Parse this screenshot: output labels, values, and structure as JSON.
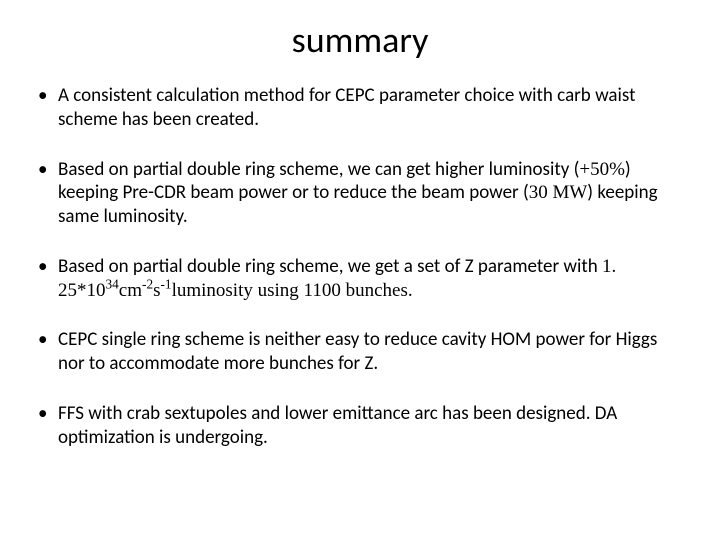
{
  "title": "summary",
  "bullets": [
    {
      "pre": "A consistent calculation method for CEPC parameter choice with carb waist scheme has been created."
    },
    {
      "pre": "Based on partial double ring scheme, we can get higher luminosity (",
      "serif1": "+50%",
      "mid1": ") keeping Pre-CDR beam power or to reduce the beam power (",
      "serif2": "30 MW",
      "post": ") keeping same luminosity."
    },
    {
      "pre": "Based on partial double ring scheme, we get a set of Z parameter with ",
      "serif_base": "1. 25*10",
      "exp1": "34",
      "serif_unit1": "cm",
      "exp2": "-2",
      "serif_unit2": "s",
      "exp3": "-1",
      "serif_tail": "luminosity using 1100 bunches."
    },
    {
      "pre": "CEPC single ring scheme is neither easy to reduce cavity HOM power for Higgs nor to accommodate more bunches for Z."
    },
    {
      "pre": "FFS with crab sextupoles and lower emittance arc has been designed. DA optimization is undergoing."
    }
  ]
}
